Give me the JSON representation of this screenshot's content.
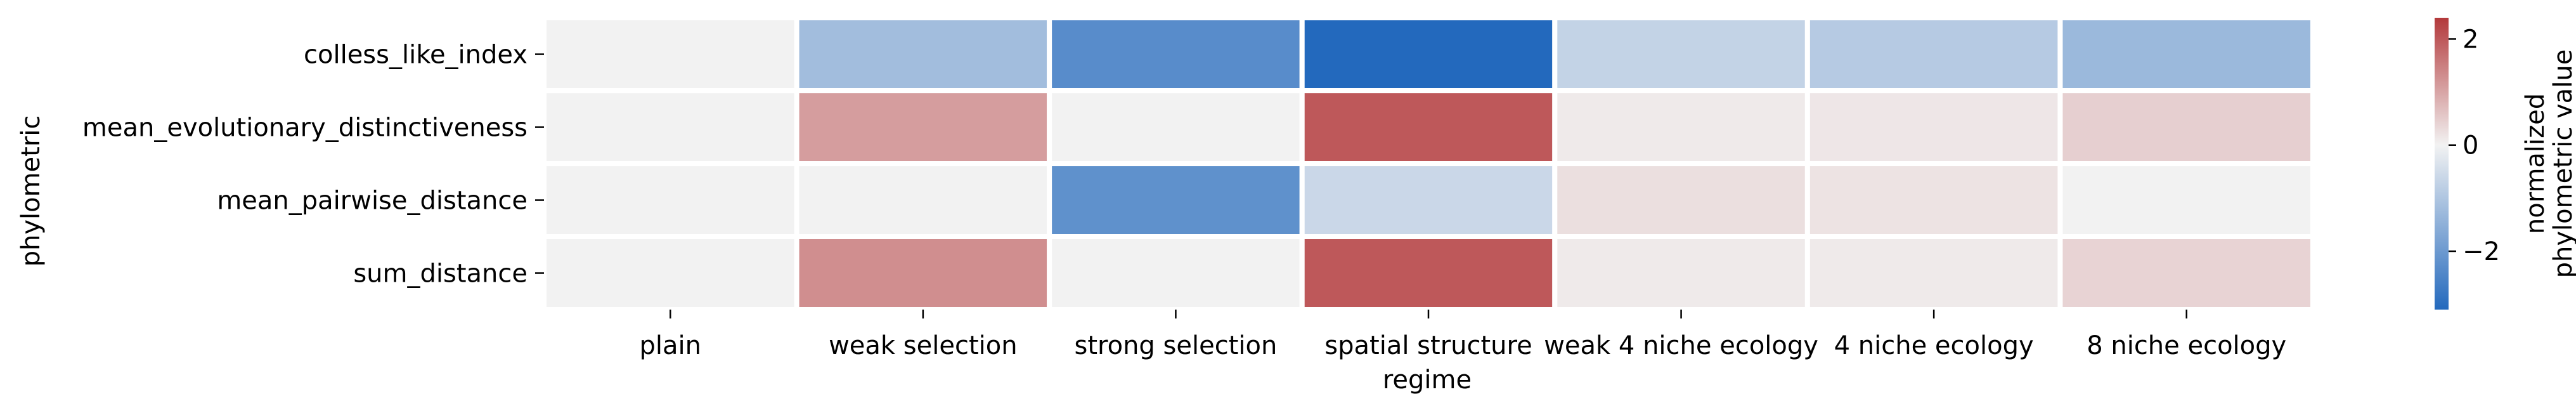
{
  "chart_data": {
    "type": "heatmap",
    "xlabel": "regime",
    "ylabel": "phylometric",
    "columns": [
      "plain",
      "weak selection",
      "strong selection",
      "spatial structure",
      "weak 4 niche ecology",
      "4 niche ecology",
      "8 niche ecology"
    ],
    "rows": [
      "colless_like_index",
      "mean_evolutionary_distinctiveness",
      "mean_pairwise_distance",
      "sum_distance"
    ],
    "values": [
      [
        0.0,
        -1.2,
        -2.3,
        -3.1,
        -0.7,
        -0.9,
        -1.3
      ],
      [
        0.0,
        1.1,
        0.0,
        2.0,
        0.1,
        0.15,
        0.45
      ],
      [
        0.0,
        0.0,
        -2.2,
        -0.6,
        0.25,
        0.2,
        0.0
      ],
      [
        0.0,
        1.3,
        0.0,
        2.0,
        0.1,
        0.1,
        0.4
      ]
    ],
    "colorbar": {
      "label": "normalized\nphylometric value",
      "range": [
        -3.1,
        2.4
      ],
      "ticks": [
        -2,
        0,
        2
      ],
      "tick_labels": [
        "−2",
        "0",
        "2"
      ],
      "low_color": "#2369bd",
      "mid_color": "#f2f2f2",
      "high_color": "#b3393b"
    },
    "grid": false,
    "cell_separators": "white"
  }
}
